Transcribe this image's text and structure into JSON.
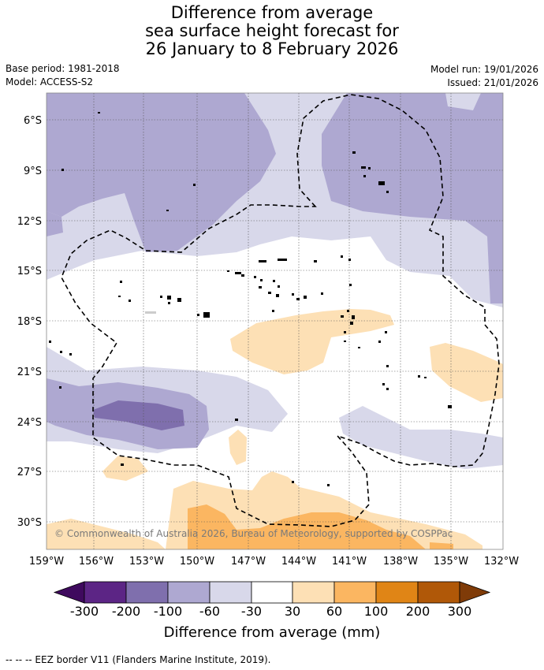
{
  "title": {
    "line1": "Difference from average",
    "line2": "sea surface height forecast for",
    "line3": "26 January to 8 February 2026"
  },
  "meta": {
    "base_period": "Base period: 1981-2018",
    "model": "Model: ACCESS-S2",
    "model_run": "Model run: 19/01/2026",
    "issued": "Issued: 21/01/2026"
  },
  "axes": {
    "lon_ticks": [
      "159°W",
      "156°W",
      "153°W",
      "150°W",
      "147°W",
      "144°W",
      "141°W",
      "138°W",
      "135°W",
      "132°W"
    ],
    "lat_ticks": [
      "6°S",
      "9°S",
      "12°S",
      "15°S",
      "18°S",
      "21°S",
      "24°S",
      "27°S",
      "30°S"
    ]
  },
  "copyright": "© Commonwealth of Australia 2026, Bureau of Meteorology, supported by COSPPac",
  "colorbar": {
    "labels": [
      "-300",
      "-200",
      "-100",
      "-60",
      "-30",
      "30",
      "60",
      "100",
      "200",
      "300"
    ],
    "colors": [
      "#3f0a5e",
      "#5c2585",
      "#7f6fad",
      "#aea8d1",
      "#d8d8ea",
      "#ffffff",
      "#fde0b5",
      "#fbb661",
      "#e08516",
      "#b05808",
      "#7f3b08"
    ],
    "title": "Difference from average (mm)"
  },
  "footnote": "--  --  -- EEZ border V11 (Flanders Marine Institute, 2019)."
}
